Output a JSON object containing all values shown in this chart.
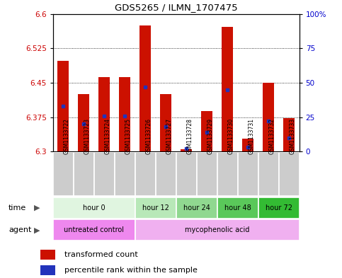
{
  "title": "GDS5265 / ILMN_1707475",
  "samples": [
    "GSM1133722",
    "GSM1133723",
    "GSM1133724",
    "GSM1133725",
    "GSM1133726",
    "GSM1133727",
    "GSM1133728",
    "GSM1133729",
    "GSM1133730",
    "GSM1133731",
    "GSM1133732",
    "GSM1133733"
  ],
  "bar_bottom": 6.3,
  "red_values": [
    6.497,
    6.425,
    6.462,
    6.462,
    6.575,
    6.425,
    6.305,
    6.388,
    6.572,
    6.328,
    6.45,
    6.373
  ],
  "blue_values": [
    33,
    20,
    26,
    26,
    47,
    18,
    2,
    14,
    45,
    3,
    22,
    10
  ],
  "ylim_left": [
    6.3,
    6.6
  ],
  "ylim_right": [
    0,
    100
  ],
  "yticks_left": [
    6.3,
    6.375,
    6.45,
    6.525,
    6.6
  ],
  "ytick_labels_left": [
    "6.3",
    "6.375",
    "6.45",
    "6.525",
    "6.6"
  ],
  "yticks_right": [
    0,
    25,
    50,
    75,
    100
  ],
  "ytick_labels_right": [
    "0",
    "25",
    "50",
    "75",
    "100%"
  ],
  "grid_yticks": [
    6.375,
    6.45,
    6.525
  ],
  "time_groups": [
    {
      "label": "hour 0",
      "start": 0,
      "end": 4,
      "color": "#e0f5e0"
    },
    {
      "label": "hour 12",
      "start": 4,
      "end": 6,
      "color": "#b8e8b8"
    },
    {
      "label": "hour 24",
      "start": 6,
      "end": 8,
      "color": "#90d890"
    },
    {
      "label": "hour 48",
      "start": 8,
      "end": 10,
      "color": "#5ac85a"
    },
    {
      "label": "hour 72",
      "start": 10,
      "end": 12,
      "color": "#33bb33"
    }
  ],
  "agent_groups": [
    {
      "label": "untreated control",
      "start": 0,
      "end": 4,
      "color": "#ee88ee"
    },
    {
      "label": "mycophenolic acid",
      "start": 4,
      "end": 12,
      "color": "#f0b0f0"
    }
  ],
  "bar_color": "#cc1100",
  "blue_marker_color": "#2233bb",
  "background_color": "#ffffff",
  "plot_bg_color": "#ffffff",
  "tick_label_color_left": "#cc0000",
  "tick_label_color_right": "#0000cc",
  "sample_box_color": "#cccccc",
  "legend_red_label": "transformed count",
  "legend_blue_label": "percentile rank within the sample"
}
